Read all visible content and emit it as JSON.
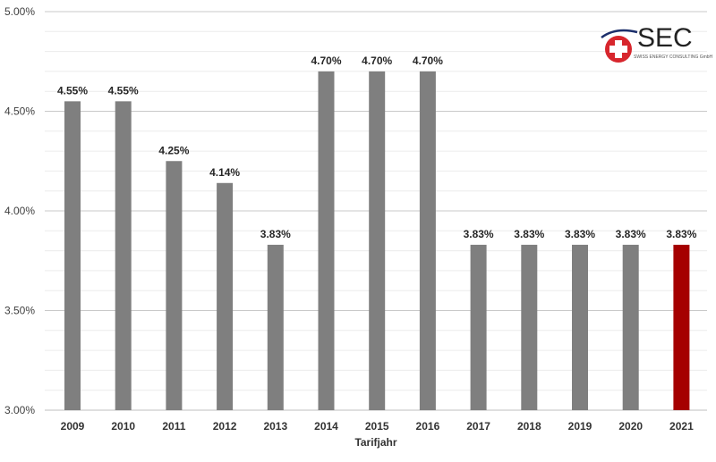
{
  "chart_data": {
    "type": "bar",
    "title": "",
    "xlabel": "Tarifjahr",
    "ylabel": "",
    "categories": [
      "2009",
      "2010",
      "2011",
      "2012",
      "2013",
      "2014",
      "2015",
      "2016",
      "2017",
      "2018",
      "2019",
      "2020",
      "2021"
    ],
    "values": [
      4.55,
      4.55,
      4.25,
      4.14,
      3.83,
      4.7,
      4.7,
      4.7,
      3.83,
      3.83,
      3.83,
      3.83,
      3.83
    ],
    "data_labels": [
      "4.55%",
      "4.55%",
      "4.25%",
      "4.14%",
      "3.83%",
      "4.70%",
      "4.70%",
      "4.70%",
      "3.83%",
      "3.83%",
      "3.83%",
      "3.83%",
      "3.83%"
    ],
    "ylim": [
      3.0,
      5.0
    ],
    "yticks": [
      {
        "value": 3.0,
        "label": "3.00%"
      },
      {
        "value": 3.5,
        "label": "3.50%"
      },
      {
        "value": 4.0,
        "label": "4.00%"
      },
      {
        "value": 4.5,
        "label": "4.50%"
      },
      {
        "value": 5.0,
        "label": "5.00%"
      }
    ],
    "minor_grid_step": 0.1,
    "grid": true,
    "colors": {
      "default": "#7f7f7f",
      "highlight": "#a50000",
      "grid_major": "#c9c9c9",
      "grid_minor": "#ececec"
    },
    "highlight_index": 12
  },
  "logo": {
    "name": "SEC",
    "subtitle": "SWISS ENERGY CONSULTING GmbH",
    "colors": {
      "red": "#d7262d",
      "navy": "#1c2f6b",
      "text": "#222222"
    }
  }
}
